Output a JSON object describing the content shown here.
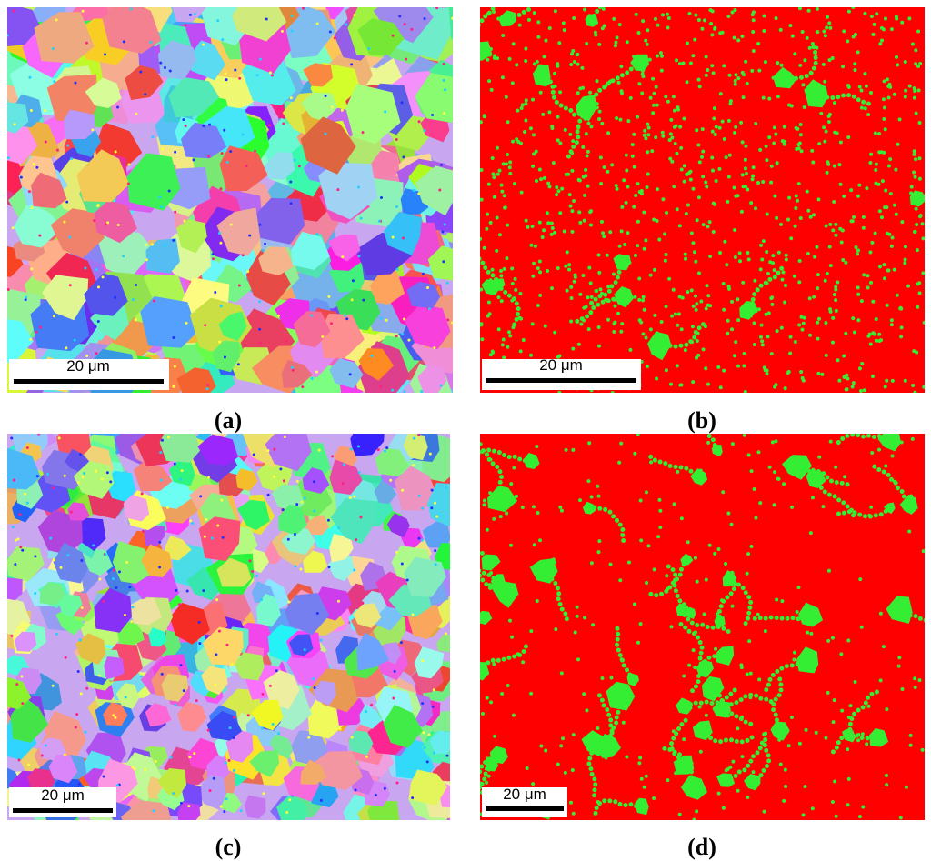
{
  "panels": [
    {
      "scale_label": "20 μm",
      "caption": "(a)"
    },
    {
      "scale_label": "20 μm",
      "caption": "(b)"
    },
    {
      "scale_label": "20 μm",
      "caption": "(c)"
    },
    {
      "scale_label": "20 μm",
      "caption": "(d)"
    }
  ]
}
